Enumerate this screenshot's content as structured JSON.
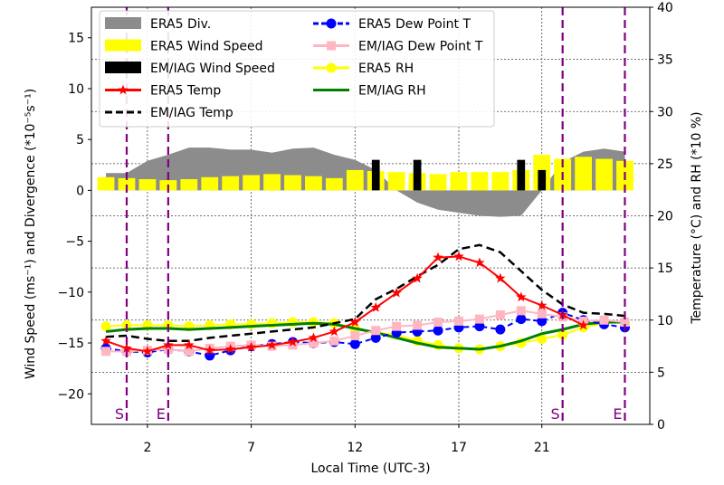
{
  "chart_data": {
    "type": "bar+line",
    "xlabel": "Local Time (UTC-3)",
    "ylabel_left": "Wind Speed (ms⁻¹) and Divergence (*10⁻⁵s⁻¹)",
    "ylabel_right": "Temperature (°C) and RH (*10 %)",
    "x_ticks": [
      21,
      2,
      7,
      12,
      17
    ],
    "x_tick_labels": [
      "21",
      "2",
      "7",
      "12",
      "17"
    ],
    "xlim": [
      -0.7,
      26.2
    ],
    "ylim_left": [
      -23,
      18
    ],
    "ylim_right": [
      0,
      40
    ],
    "left_ticks": [
      -20,
      -15,
      -10,
      -5,
      0,
      5,
      10,
      15
    ],
    "left_tick_labels": [
      "−20",
      "−15",
      "−10",
      "−5",
      "0",
      "5",
      "10",
      "15"
    ],
    "right_ticks": [
      0,
      5,
      10,
      15,
      20,
      25,
      30,
      35,
      40
    ],
    "right_tick_labels": [
      "0",
      "5",
      "10",
      "15",
      "20",
      "25",
      "30",
      "35",
      "40"
    ],
    "grid": true,
    "legend_position": "top-left",
    "vlines": [
      {
        "x": 1.0,
        "label": "S"
      },
      {
        "x": 3.0,
        "label": "E"
      },
      {
        "x": 22.0,
        "label": "S"
      },
      {
        "x": 25.0,
        "label": "E"
      }
    ],
    "legend": [
      {
        "name": "ERA5 Div.",
        "kind": "patch",
        "color": "#8c8c8c"
      },
      {
        "name": "ERA5 Wind Speed",
        "kind": "patch",
        "color": "#ffff00"
      },
      {
        "name": "EM/IAG Wind Speed",
        "kind": "patch",
        "color": "#000000"
      },
      {
        "name": "ERA5 Temp",
        "kind": "line",
        "color": "#ff0000",
        "marker": "star"
      },
      {
        "name": "EM/IAG Temp",
        "kind": "dash",
        "color": "#000000"
      },
      {
        "name": "ERA5 Dew Point T",
        "kind": "line",
        "color": "#0000ff",
        "marker": "circle",
        "dash": true
      },
      {
        "name": "EM/IAG Dew Point T",
        "kind": "line",
        "color": "#ffb6c1",
        "marker": "square"
      },
      {
        "name": "ERA5 RH",
        "kind": "line",
        "color": "#ffff00",
        "marker": "circle"
      },
      {
        "name": "EM/IAG RH",
        "kind": "line",
        "color": "#008000"
      }
    ],
    "series": [
      {
        "key": "era5_div",
        "axis": "left",
        "render": "area",
        "color": "#8c8c8c",
        "x": [
          0,
          1,
          2,
          3,
          4,
          5,
          6,
          7,
          8,
          9,
          10,
          11,
          12,
          13,
          14,
          15,
          16,
          17,
          18,
          19,
          20,
          21,
          22,
          23,
          24,
          25
        ],
        "values": [
          1.7,
          1.7,
          2.9,
          3.5,
          4.2,
          4.2,
          4.0,
          4.0,
          3.7,
          4.1,
          4.2,
          3.5,
          3.0,
          2.0,
          0.0,
          -1.2,
          -1.9,
          -2.2,
          -2.5,
          -2.6,
          -2.5,
          0.0,
          2.8,
          3.8,
          4.1,
          3.8
        ]
      },
      {
        "key": "era5_ws",
        "axis": "left",
        "render": "bar",
        "color": "#ffff00",
        "x": [
          0,
          1,
          2,
          3,
          4,
          5,
          6,
          7,
          8,
          9,
          10,
          11,
          12,
          13,
          14,
          15,
          16,
          17,
          18,
          19,
          20,
          21,
          22,
          23,
          24,
          25
        ],
        "values": [
          1.3,
          1.2,
          1.1,
          1.0,
          1.1,
          1.3,
          1.4,
          1.5,
          1.6,
          1.5,
          1.4,
          1.2,
          2.0,
          1.9,
          1.8,
          1.7,
          1.6,
          1.8,
          1.8,
          1.8,
          2.0,
          3.5,
          3.1,
          3.3,
          3.1,
          2.9
        ]
      },
      {
        "key": "emiag_ws",
        "axis": "left",
        "render": "bar",
        "color": "#000000",
        "x": [
          13,
          15,
          20,
          21
        ],
        "values": [
          3.0,
          3.0,
          3.0,
          2.0
        ]
      },
      {
        "key": "era5_temp",
        "axis": "right",
        "render": "line",
        "color": "#ff0000",
        "marker": "star",
        "x": [
          0,
          1,
          2,
          3,
          4,
          5,
          6,
          7,
          8,
          9,
          10,
          11,
          12,
          13,
          14,
          15,
          16,
          17,
          18,
          19,
          20,
          21,
          22,
          23
        ],
        "values": [
          8.0,
          7.3,
          7.0,
          7.6,
          7.6,
          7.1,
          7.2,
          7.4,
          7.6,
          7.9,
          8.3,
          8.9,
          9.8,
          11.2,
          12.6,
          14.0,
          16.0,
          16.1,
          15.5,
          14.0,
          12.2,
          11.4,
          10.5,
          9.5
        ]
      },
      {
        "key": "emiag_temp",
        "axis": "right",
        "render": "line",
        "color": "#000000",
        "dashed": true,
        "x": [
          0,
          1,
          2,
          3,
          4,
          5,
          6,
          7,
          8,
          9,
          10,
          11,
          12,
          13,
          14,
          15,
          16,
          17,
          18,
          19,
          20,
          21,
          22,
          23,
          24,
          25
        ],
        "values": [
          8.4,
          8.5,
          8.2,
          8.0,
          8.0,
          8.3,
          8.5,
          8.7,
          8.9,
          9.1,
          9.3,
          9.7,
          10.1,
          12.0,
          13.0,
          14.2,
          15.3,
          16.8,
          17.2,
          16.5,
          14.7,
          12.9,
          11.5,
          10.7,
          10.6,
          10.4
        ]
      },
      {
        "key": "era5_dew",
        "axis": "right",
        "render": "line",
        "color": "#0000ff",
        "marker": "circle",
        "dashed": true,
        "x": [
          0,
          1,
          2,
          3,
          4,
          5,
          6,
          7,
          8,
          9,
          10,
          11,
          12,
          13,
          14,
          15,
          16,
          17,
          18,
          19,
          20,
          21,
          22,
          23,
          24,
          25
        ],
        "values": [
          7.3,
          7.0,
          6.9,
          7.2,
          7.0,
          6.6,
          7.1,
          7.5,
          7.7,
          7.9,
          7.8,
          7.9,
          7.7,
          8.3,
          8.8,
          8.9,
          9.0,
          9.3,
          9.4,
          9.1,
          10.1,
          9.9,
          10.7,
          10.0,
          9.6,
          9.3
        ]
      },
      {
        "key": "emiag_dew",
        "axis": "right",
        "render": "line",
        "color": "#ffb6c1",
        "marker": "square",
        "x": [
          0,
          1,
          2,
          3,
          4,
          5,
          6,
          7,
          8,
          9,
          10,
          11,
          12,
          13,
          14,
          15,
          16,
          17,
          18,
          19,
          20,
          21,
          22,
          23,
          24,
          25
        ],
        "values": [
          7.0,
          7.0,
          7.1,
          7.2,
          7.0,
          7.3,
          7.5,
          7.6,
          7.5,
          7.6,
          7.8,
          8.0,
          8.5,
          9.0,
          9.4,
          9.5,
          9.8,
          9.9,
          10.1,
          10.5,
          10.9,
          10.6,
          10.3,
          9.9,
          10.0,
          9.8
        ]
      },
      {
        "key": "era5_rh",
        "axis": "right",
        "render": "line",
        "color": "#ffff00",
        "marker": "circle",
        "x": [
          0,
          1,
          2,
          3,
          4,
          5,
          6,
          7,
          8,
          9,
          10,
          11,
          12,
          13,
          14,
          15,
          16,
          17,
          18,
          19,
          20,
          21,
          22,
          23,
          24,
          25
        ],
        "values": [
          9.4,
          9.5,
          9.5,
          9.5,
          9.4,
          9.5,
          9.6,
          9.6,
          9.7,
          9.8,
          9.8,
          9.7,
          9.2,
          8.8,
          8.6,
          8.0,
          7.6,
          7.3,
          7.2,
          7.5,
          7.8,
          8.2,
          8.6,
          9.3,
          9.7,
          9.8
        ]
      },
      {
        "key": "emiag_rh",
        "axis": "right",
        "render": "line",
        "color": "#008000",
        "x": [
          0,
          1,
          2,
          3,
          4,
          5,
          6,
          7,
          8,
          9,
          10,
          11,
          12,
          13,
          14,
          15,
          16,
          17,
          18,
          19,
          20,
          21,
          22,
          23,
          24,
          25
        ],
        "values": [
          8.9,
          9.1,
          9.2,
          9.2,
          9.1,
          9.2,
          9.3,
          9.4,
          9.5,
          9.6,
          9.7,
          9.6,
          9.2,
          8.8,
          8.3,
          7.8,
          7.4,
          7.3,
          7.2,
          7.5,
          8.0,
          8.7,
          9.1,
          9.6,
          9.8,
          9.8
        ]
      }
    ]
  }
}
